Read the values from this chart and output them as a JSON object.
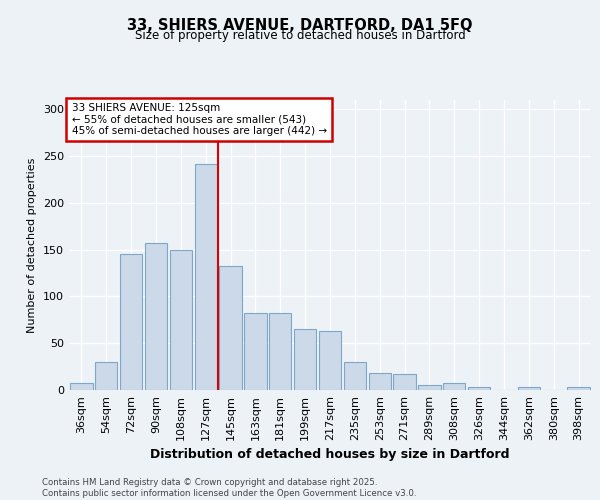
{
  "title1": "33, SHIERS AVENUE, DARTFORD, DA1 5FQ",
  "title2": "Size of property relative to detached houses in Dartford",
  "xlabel": "Distribution of detached houses by size in Dartford",
  "ylabel": "Number of detached properties",
  "categories": [
    "36sqm",
    "54sqm",
    "72sqm",
    "90sqm",
    "108sqm",
    "127sqm",
    "145sqm",
    "163sqm",
    "181sqm",
    "199sqm",
    "217sqm",
    "235sqm",
    "253sqm",
    "271sqm",
    "289sqm",
    "308sqm",
    "326sqm",
    "344sqm",
    "362sqm",
    "380sqm",
    "398sqm"
  ],
  "values": [
    8,
    30,
    145,
    157,
    150,
    242,
    133,
    82,
    82,
    65,
    63,
    30,
    18,
    17,
    5,
    7,
    3,
    0,
    3,
    0,
    3
  ],
  "bar_color": "#ccd9e8",
  "bar_edge_color": "#7fa8c8",
  "vline_x_idx": 5,
  "vline_color": "#dd0000",
  "annotation_text": "33 SHIERS AVENUE: 125sqm\n← 55% of detached houses are smaller (543)\n45% of semi-detached houses are larger (442) →",
  "annotation_box_color": "#ffffff",
  "annotation_box_edge": "#cc0000",
  "footer": "Contains HM Land Registry data © Crown copyright and database right 2025.\nContains public sector information licensed under the Open Government Licence v3.0.",
  "ylim": [
    0,
    310
  ],
  "yticks": [
    0,
    50,
    100,
    150,
    200,
    250,
    300
  ],
  "background_color": "#edf2f7",
  "grid_color": "#ffffff",
  "fig_width": 6.0,
  "fig_height": 5.0,
  "dpi": 100
}
